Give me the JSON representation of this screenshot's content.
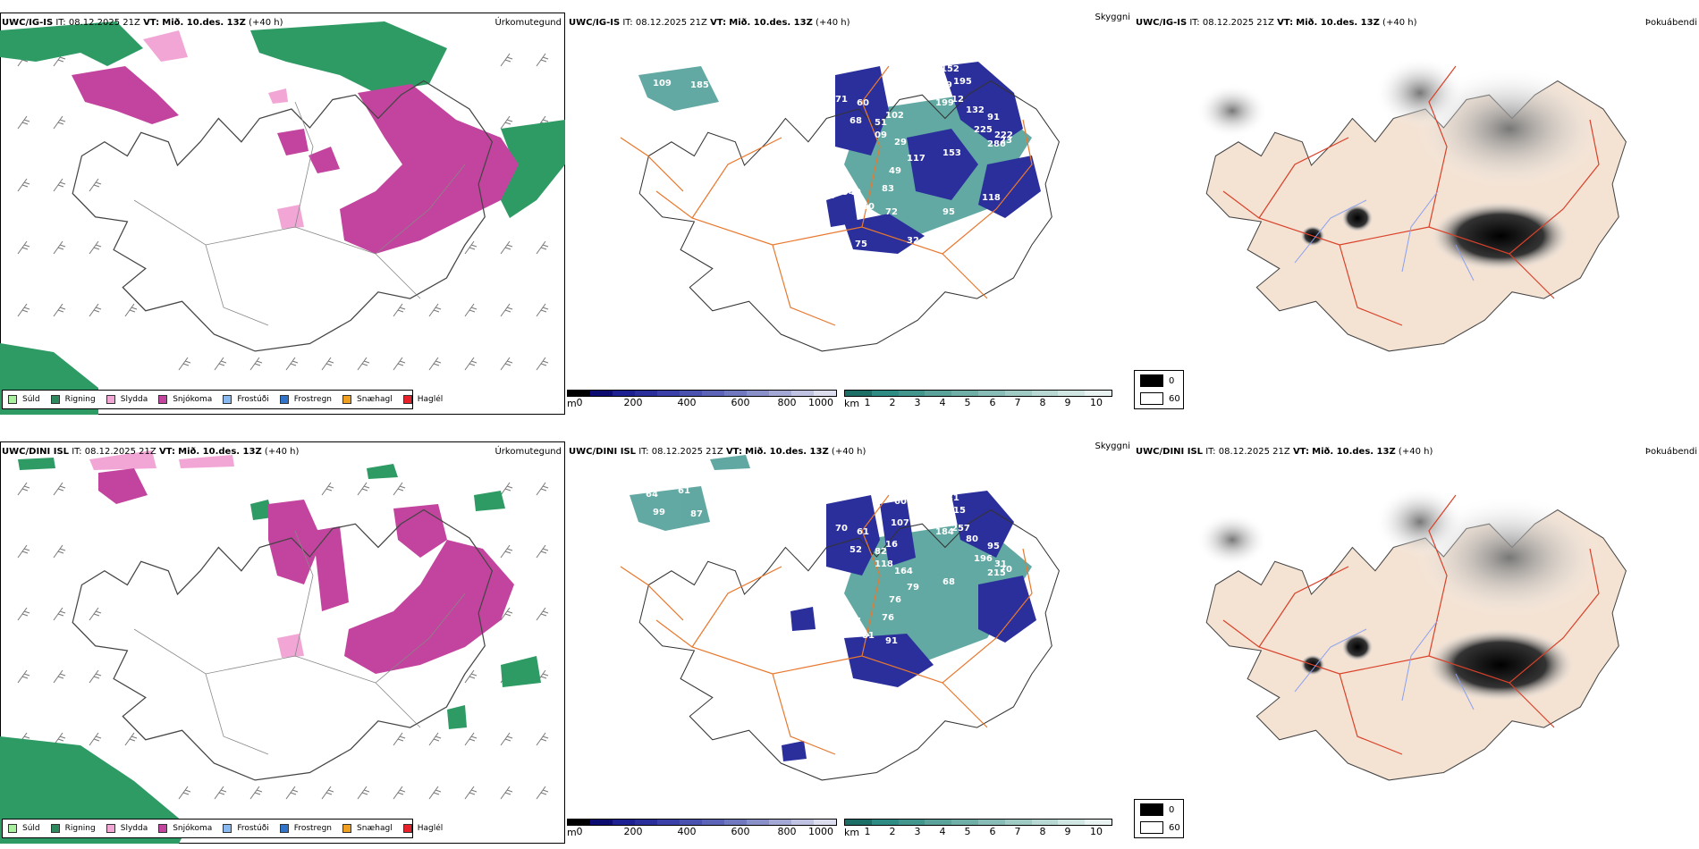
{
  "colors": {
    "land_beige": "#f4e2d2",
    "road_orange": "#e8782e",
    "road_red": "#d9422a",
    "river_blue": "#8aa0f0",
    "snow_magenta": "#c2449e",
    "rain_green": "#2e9a64",
    "sleet_pink": "#f2a6d6",
    "cloud_navy": "#2b2f9c",
    "fog_teal": "#2e8c84"
  },
  "rows": [
    {
      "model": "UWC/IG-IS",
      "it_label": "IT:",
      "it_value": "08.12.2025 21Z",
      "vt_label": "VT:",
      "vt_value": "Mið. 10.des. 13Z",
      "lead": "(+40 h)",
      "cloud_numbers": [
        "151",
        "83",
        "109",
        "185",
        "71",
        "60",
        "68",
        "66",
        "40",
        "102",
        "51",
        "09",
        "29",
        "152",
        "159",
        "199",
        "195",
        "12",
        "225",
        "132",
        "91",
        "222",
        "286",
        "23",
        "153",
        "117",
        "49",
        "83",
        "940",
        "60",
        "72",
        "95",
        "118",
        "98",
        "73",
        "84",
        "75",
        "32"
      ]
    },
    {
      "model": "UWC/DINI ISL",
      "it_label": "IT:",
      "it_value": "08.12.2025 21Z",
      "vt_label": "VT:",
      "vt_value": "Mið. 10.des. 13Z",
      "lead": "(+40 h)",
      "cloud_numbers": [
        "64",
        "61",
        "99",
        "87",
        "70",
        "61",
        "52",
        "60",
        "107",
        "16",
        "82",
        "118",
        "164",
        "131",
        "232",
        "184",
        "15",
        "257",
        "196",
        "80",
        "95",
        "31",
        "215",
        "70",
        "68",
        "79",
        "76",
        "76",
        "187",
        "81",
        "91"
      ]
    }
  ],
  "panel_titles": {
    "precip": "Úrkomutegund",
    "visibility": "Skyggni",
    "fog": "Þokuábendi"
  },
  "precip_legend": [
    {
      "label": "Súld",
      "color": "#a8f0a0"
    },
    {
      "label": "Rigning",
      "color": "#2e8a5c"
    },
    {
      "label": "Slydda",
      "color": "#f2a6d6"
    },
    {
      "label": "Snjókoma",
      "color": "#c2449e"
    },
    {
      "label": "Frostúði",
      "color": "#8ab8f0"
    },
    {
      "label": "Frostregn",
      "color": "#2f74c8"
    },
    {
      "label": "Snæhagl",
      "color": "#f0a020"
    },
    {
      "label": "Haglél",
      "color": "#e8202a"
    }
  ],
  "ceiling_scale": {
    "unit": "m",
    "ticks": [
      "0",
      "200",
      "400",
      "600",
      "800",
      "1000"
    ],
    "colors": [
      "#000000",
      "#0c0c70",
      "#1c2090",
      "#2b2f9c",
      "#3a40a8",
      "#4a52b0",
      "#5c64b8",
      "#7078c0",
      "#8a90c8",
      "#a4a8d4",
      "#c0c4e2",
      "#dcdef0"
    ]
  },
  "vis_scale": {
    "unit": "km",
    "ticks": [
      "1",
      "2",
      "3",
      "4",
      "5",
      "6",
      "7",
      "8",
      "9",
      "10"
    ],
    "colors": [
      "#1d6e66",
      "#2e8c84",
      "#43968e",
      "#5aa29a",
      "#70aea8",
      "#88bcb6",
      "#a0cac4",
      "#b8d8d4",
      "#d0e6e2",
      "#e8f3f1"
    ]
  },
  "fog_legend": {
    "low": "0",
    "high": "60"
  }
}
